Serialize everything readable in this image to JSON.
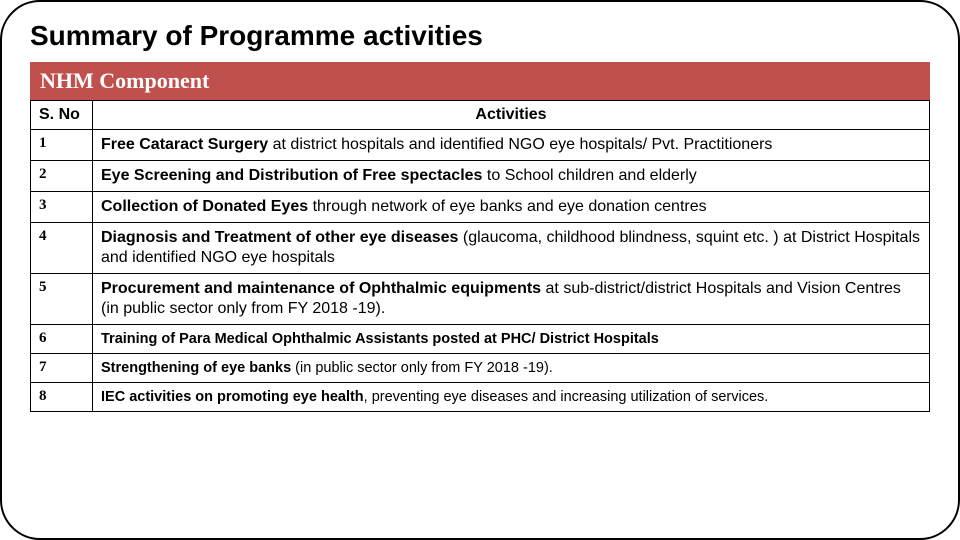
{
  "title": "Summary of Programme activities",
  "banner": "NHM Component",
  "columns": {
    "sno": "S. No",
    "activities": "Activities"
  },
  "rows": [
    {
      "sno": "1",
      "bold": "Free Cataract Surgery",
      "rest": " at district hospitals and identified NGO eye hospitals/ Pvt. Practitioners",
      "size": "normal"
    },
    {
      "sno": "2",
      "bold": "Eye Screening and Distribution of Free spectacles",
      "rest": " to School children and elderly",
      "size": "normal"
    },
    {
      "sno": "3",
      "bold": "Collection of Donated Eyes",
      "rest": " through network of eye banks and eye donation centres",
      "size": "normal"
    },
    {
      "sno": "4",
      "bold": "Diagnosis and Treatment of other eye diseases",
      "rest": " (glaucoma, childhood blindness, squint etc. ) at District Hospitals and identified NGO eye hospitals",
      "size": "normal"
    },
    {
      "sno": "5",
      "bold": "Procurement and maintenance of Ophthalmic equipments",
      "rest": " at sub-district/district Hospitals and Vision Centres (in public sector only from  FY 2018 -19).",
      "size": "normal"
    },
    {
      "sno": "6",
      "bold": "Training of Para Medical Ophthalmic Assistants posted at  PHC/ District Hospitals",
      "rest": "",
      "size": "small"
    },
    {
      "sno": "7",
      "bold": "Strengthening of eye banks",
      "rest": " (in public sector only from FY 2018 -19).",
      "size": "small"
    },
    {
      "sno": "8",
      "bold": "IEC activities on promoting eye health",
      "rest": ", preventing eye diseases and increasing utilization of services.",
      "size": "small"
    }
  ]
}
